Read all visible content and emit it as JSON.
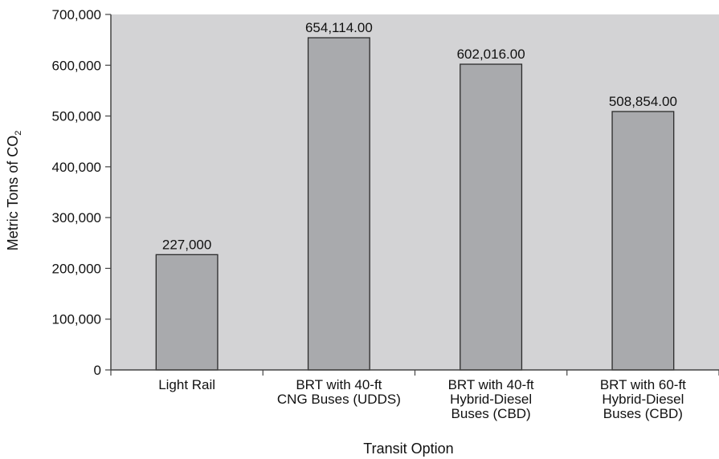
{
  "chart_data": {
    "type": "bar",
    "categories": [
      [
        "Light Rail"
      ],
      [
        "BRT with 40-ft",
        "CNG Buses (UDDS)"
      ],
      [
        "BRT with 40-ft",
        "Hybrid-Diesel",
        "Buses (CBD)"
      ],
      [
        "BRT with 60-ft",
        "Hybrid-Diesel",
        "Buses (CBD)"
      ]
    ],
    "values": [
      227000,
      654114,
      602016,
      508854
    ],
    "data_labels": [
      "227,000",
      "654,114.00",
      "602,016.00",
      "508,854.00"
    ],
    "xlabel": "Transit Option",
    "ylabel": "Metric Tons of CO",
    "ylabel_subscript": "2",
    "ylim": [
      0,
      700000
    ],
    "yticks": [
      0,
      100000,
      200000,
      300000,
      400000,
      500000,
      600000,
      700000
    ],
    "ytick_labels": [
      "0",
      "100,000",
      "200,000",
      "300,000",
      "400,000",
      "500,000",
      "600,000",
      "700,000"
    ],
    "grid": false,
    "legend": "none",
    "colors": {
      "plot_background": "#d3d3d5",
      "bar_fill": "#a9aaad",
      "bar_stroke": "#2b2b2b",
      "axis": "#444444"
    }
  }
}
